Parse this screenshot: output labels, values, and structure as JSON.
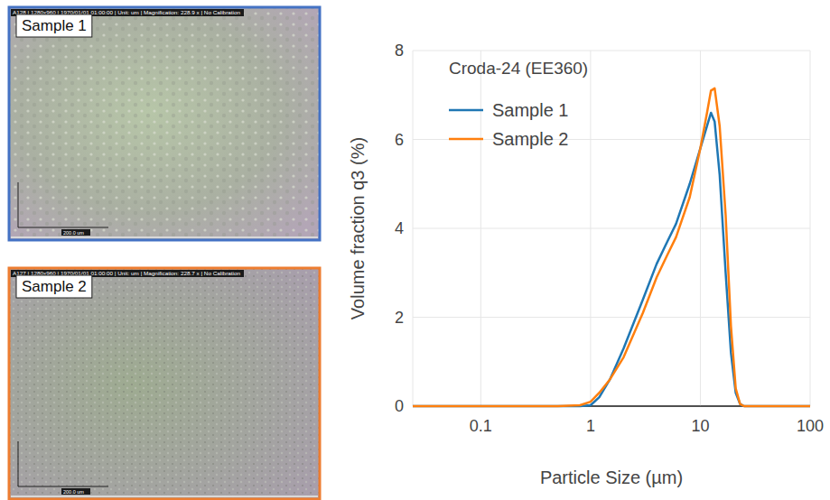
{
  "panels": [
    {
      "label": "Sample 1",
      "header": "A128 | 1280x960 | 1970/01/01 01:00:00 | Unit: um | Magnification: 228.9 x | No Calibration",
      "scale_bar": "200.0 um",
      "color": "#4472c4"
    },
    {
      "label": "Sample 2",
      "header": "A127 | 1280x960 | 1970/01/01 01:00:00 | Unit: um | Magnification: 228.7 x | No Calibration",
      "scale_bar": "200.0 um",
      "color": "#ed7d31"
    }
  ],
  "chart_data": {
    "type": "line",
    "title": "Croda-24 (EE360)",
    "x_label": "Particle Size (µm)",
    "y_label": "Volume fraction q3 (%)",
    "x": [
      0.024,
      0.1,
      0.5,
      0.8,
      1.0,
      1.2,
      1.5,
      2.0,
      3.0,
      4.0,
      5.0,
      6.0,
      8.0,
      10.0,
      11.5,
      12.5,
      13.5,
      15.0,
      17.0,
      19.0,
      21.0,
      23.0,
      25.0,
      30.0,
      100
    ],
    "series": [
      {
        "name": "Sample 1",
        "color": "#1f77b4",
        "values": [
          0,
          0,
          0,
          0,
          0.02,
          0.2,
          0.6,
          1.3,
          2.4,
          3.2,
          3.7,
          4.1,
          5.0,
          5.8,
          6.3,
          6.6,
          6.4,
          5.2,
          3.0,
          1.2,
          0.3,
          0.05,
          0,
          0,
          0
        ]
      },
      {
        "name": "Sample 2",
        "color": "#ff7f0e",
        "values": [
          0,
          0,
          0,
          0.02,
          0.1,
          0.3,
          0.6,
          1.1,
          2.1,
          2.9,
          3.4,
          3.8,
          4.7,
          5.8,
          6.6,
          7.1,
          7.15,
          6.3,
          4.3,
          1.8,
          0.4,
          0.05,
          0,
          0,
          0
        ]
      }
    ],
    "xlim": [
      0.024,
      100
    ],
    "ylim": [
      0,
      8
    ],
    "xticks": [
      0.1,
      1,
      10,
      100
    ],
    "yticks": [
      0,
      2,
      4,
      6,
      8
    ],
    "log": "x",
    "grid": true,
    "legend": "upper left"
  }
}
